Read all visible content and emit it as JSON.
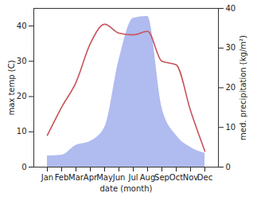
{
  "chart_data": {
    "type": "line",
    "x_label": "date (month)",
    "y_label": "max temp (C)",
    "y2_label": "med. precipitation (kg/m²)",
    "categories": [
      "Jan",
      "Feb",
      "Mar",
      "Apr",
      "May",
      "Jun",
      "Jul",
      "Aug",
      "Sep",
      "Oct",
      "Nov",
      "Dec"
    ],
    "series": [
      {
        "name": "med. precipitation",
        "type": "area",
        "axis": "y2",
        "color": "#b0bbf0",
        "values": [
          2.8,
          3.0,
          5.5,
          6.5,
          10,
          27,
          37.5,
          38,
          15,
          8,
          5,
          3.5
        ]
      },
      {
        "name": "max temp",
        "type": "line",
        "axis": "y",
        "color": "#c8545a",
        "values": [
          9,
          17,
          24,
          35,
          40.5,
          38,
          37.5,
          38.5,
          30,
          29,
          16,
          4.5
        ]
      }
    ],
    "ylim": [
      0,
      45
    ],
    "yticks": [
      0,
      10,
      20,
      30,
      40
    ],
    "y2lim": [
      0,
      40
    ],
    "y2ticks": [
      0,
      10,
      20,
      30,
      40
    ],
    "grid": false
  }
}
